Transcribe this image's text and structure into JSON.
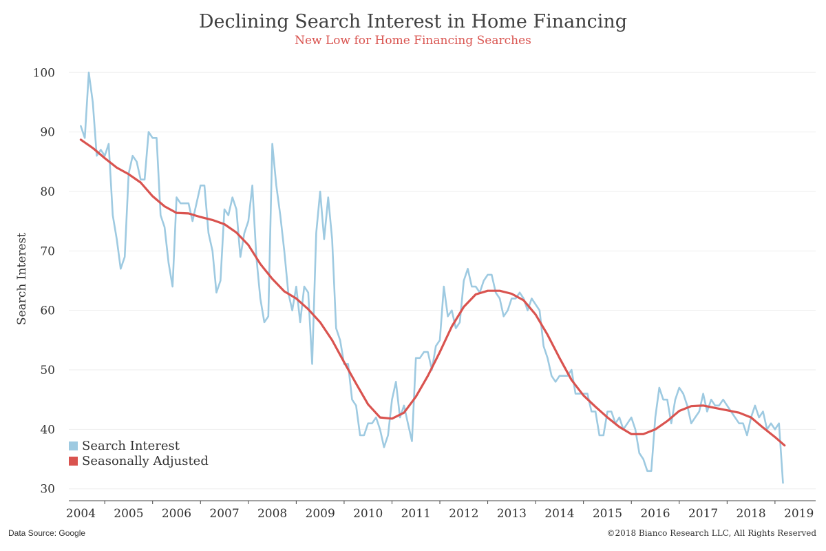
{
  "title": "Declining Search Interest in Home Financing",
  "subtitle": "New Low for Home Financing Searches",
  "footer": {
    "source": "Data Source: Google",
    "copyright": "©2018 Bianco Research LLC, All Rights Reserved"
  },
  "colors": {
    "search_interest": "#9ecae1",
    "seasonally_adjusted": "#d9534f",
    "grid": "#eeeeee",
    "axis": "#444444"
  },
  "chart_data": {
    "type": "line",
    "title": "Declining Search Interest in Home Financing",
    "subtitle": "New Low for Home Financing Searches",
    "xlabel": "",
    "ylabel": "Search Interest",
    "xlim": [
      2003.75,
      2019.35
    ],
    "ylim": [
      28,
      102
    ],
    "grid": true,
    "legend": "bottom-left",
    "x_ticks": [
      2004,
      2005,
      2006,
      2007,
      2008,
      2009,
      2010,
      2011,
      2012,
      2013,
      2014,
      2015,
      2016,
      2017,
      2018,
      2019
    ],
    "y_ticks": [
      30,
      40,
      50,
      60,
      70,
      80,
      90,
      100
    ],
    "series": [
      {
        "name": "Search Interest",
        "color": "#9ecae1",
        "x": [
          2004.0,
          2004.083,
          2004.167,
          2004.25,
          2004.333,
          2004.417,
          2004.5,
          2004.583,
          2004.667,
          2004.75,
          2004.833,
          2004.917,
          2005.0,
          2005.083,
          2005.167,
          2005.25,
          2005.333,
          2005.417,
          2005.5,
          2005.583,
          2005.667,
          2005.75,
          2005.833,
          2005.917,
          2006.0,
          2006.083,
          2006.167,
          2006.25,
          2006.333,
          2006.417,
          2006.5,
          2006.583,
          2006.667,
          2006.75,
          2006.833,
          2006.917,
          2007.0,
          2007.083,
          2007.167,
          2007.25,
          2007.333,
          2007.417,
          2007.5,
          2007.583,
          2007.667,
          2007.75,
          2007.833,
          2007.917,
          2008.0,
          2008.083,
          2008.167,
          2008.25,
          2008.333,
          2008.417,
          2008.5,
          2008.583,
          2008.667,
          2008.75,
          2008.833,
          2008.917,
          2009.0,
          2009.083,
          2009.167,
          2009.25,
          2009.333,
          2009.417,
          2009.5,
          2009.583,
          2009.667,
          2009.75,
          2009.833,
          2009.917,
          2010.0,
          2010.083,
          2010.167,
          2010.25,
          2010.333,
          2010.417,
          2010.5,
          2010.583,
          2010.667,
          2010.75,
          2010.833,
          2010.917,
          2011.0,
          2011.083,
          2011.167,
          2011.25,
          2011.333,
          2011.417,
          2011.5,
          2011.583,
          2011.667,
          2011.75,
          2011.833,
          2011.917,
          2012.0,
          2012.083,
          2012.167,
          2012.25,
          2012.333,
          2012.417,
          2012.5,
          2012.583,
          2012.667,
          2012.75,
          2012.833,
          2012.917,
          2013.0,
          2013.083,
          2013.167,
          2013.25,
          2013.333,
          2013.417,
          2013.5,
          2013.583,
          2013.667,
          2013.75,
          2013.833,
          2013.917,
          2014.0,
          2014.083,
          2014.167,
          2014.25,
          2014.333,
          2014.417,
          2014.5,
          2014.583,
          2014.667,
          2014.75,
          2014.833,
          2014.917,
          2015.0,
          2015.083,
          2015.167,
          2015.25,
          2015.333,
          2015.417,
          2015.5,
          2015.583,
          2015.667,
          2015.75,
          2015.833,
          2015.917,
          2016.0,
          2016.083,
          2016.167,
          2016.25,
          2016.333,
          2016.417,
          2016.5,
          2016.583,
          2016.667,
          2016.75,
          2016.833,
          2016.917,
          2017.0,
          2017.083,
          2017.167,
          2017.25,
          2017.333,
          2017.417,
          2017.5,
          2017.583,
          2017.667,
          2017.75,
          2017.833,
          2017.917,
          2018.0,
          2018.083,
          2018.167,
          2018.25,
          2018.333,
          2018.417,
          2018.5,
          2018.583,
          2018.667
        ],
        "values": [
          91,
          89,
          100,
          95,
          86,
          87,
          86,
          88,
          76,
          72,
          67,
          69,
          83,
          86,
          85,
          82,
          82,
          90,
          89,
          89,
          76,
          74,
          68,
          64,
          79,
          78,
          78,
          78,
          75,
          78,
          81,
          81,
          73,
          70,
          63,
          65,
          77,
          76,
          79,
          77,
          69,
          73,
          75,
          81,
          69,
          62,
          58,
          59,
          88,
          81,
          76,
          70,
          63,
          60,
          64,
          58,
          64,
          63,
          51,
          73,
          80,
          72,
          79,
          72,
          57,
          55,
          51,
          51,
          45,
          44,
          39,
          39,
          41,
          41,
          42,
          40,
          37,
          39,
          45,
          48,
          42,
          44,
          41,
          38,
          52,
          52,
          53,
          53,
          50,
          54,
          55,
          64,
          59,
          60,
          57,
          58,
          65,
          67,
          64,
          64,
          63,
          65,
          66,
          66,
          63,
          62,
          59,
          60,
          62,
          62,
          63,
          62,
          60,
          62,
          61,
          60,
          54,
          52,
          49,
          48,
          49,
          49,
          49,
          50,
          46,
          46,
          46,
          46,
          43,
          43,
          39,
          39,
          43,
          43,
          41,
          42,
          40,
          41,
          42,
          40,
          36,
          35,
          33,
          33,
          42,
          47,
          45,
          45,
          41,
          45,
          47,
          46,
          44,
          41,
          42,
          43,
          46,
          43,
          45,
          44,
          44,
          45,
          44,
          43,
          42,
          41,
          41,
          39,
          42,
          44,
          42,
          43,
          40,
          41,
          40,
          41,
          31
        ]
      },
      {
        "name": "Seasonally Adjusted",
        "color": "#d9534f",
        "x": [
          2004.0,
          2004.25,
          2004.5,
          2004.75,
          2005.0,
          2005.25,
          2005.5,
          2005.75,
          2006.0,
          2006.25,
          2006.5,
          2006.75,
          2007.0,
          2007.25,
          2007.5,
          2007.75,
          2008.0,
          2008.25,
          2008.5,
          2008.75,
          2009.0,
          2009.25,
          2009.5,
          2009.75,
          2010.0,
          2010.25,
          2010.5,
          2010.75,
          2011.0,
          2011.25,
          2011.5,
          2011.75,
          2012.0,
          2012.25,
          2012.5,
          2012.75,
          2013.0,
          2013.25,
          2013.5,
          2013.75,
          2014.0,
          2014.25,
          2014.5,
          2014.75,
          2015.0,
          2015.25,
          2015.5,
          2015.75,
          2016.0,
          2016.25,
          2016.5,
          2016.75,
          2017.0,
          2017.25,
          2017.5,
          2017.75,
          2018.0,
          2018.25,
          2018.5,
          2018.7
        ],
        "values": [
          88.7,
          87.3,
          85.6,
          84.0,
          82.9,
          81.5,
          79.2,
          77.5,
          76.4,
          76.3,
          75.7,
          75.2,
          74.5,
          73.1,
          71.0,
          67.8,
          65.3,
          63.2,
          62.0,
          60.2,
          58.0,
          55.0,
          51.3,
          47.7,
          44.2,
          42.0,
          41.8,
          42.8,
          45.5,
          49.0,
          53.0,
          57.3,
          60.6,
          62.7,
          63.3,
          63.3,
          62.8,
          61.7,
          59.3,
          55.9,
          52.0,
          48.3,
          45.7,
          43.8,
          42.0,
          40.4,
          39.2,
          39.2,
          40.0,
          41.4,
          43.1,
          43.9,
          44.0,
          43.6,
          43.2,
          42.8,
          42.0,
          40.3,
          38.7,
          37.3
        ]
      }
    ]
  }
}
